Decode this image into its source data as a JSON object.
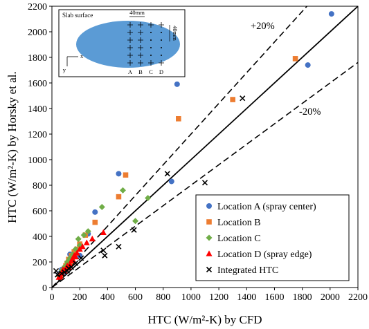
{
  "chart_data": {
    "type": "scatter",
    "title": "",
    "xlabel": "HTC (W/m²-K) by CFD",
    "ylabel": "HTC (W/m²-K) by Horsky et al.",
    "xlim": [
      0,
      2200
    ],
    "ylim": [
      0,
      2200
    ],
    "xticks": [
      0,
      200,
      400,
      600,
      800,
      1000,
      1200,
      1400,
      1600,
      1800,
      2000,
      2200
    ],
    "yticks": [
      0,
      200,
      400,
      600,
      800,
      1000,
      1200,
      1400,
      1600,
      1800,
      2000,
      2200
    ],
    "grid": false,
    "legend_position": "bottom-right",
    "reference_lines": [
      {
        "kind": "parity",
        "slope": 1.0,
        "style": "solid"
      },
      {
        "kind": "upper",
        "slope": 1.2,
        "style": "dashed",
        "label": "+20%"
      },
      {
        "kind": "lower",
        "slope": 0.8,
        "style": "dashed",
        "label": "-20%"
      }
    ],
    "series": [
      {
        "name": "Location A (spray center)",
        "marker": "circle",
        "color": "#4472c4",
        "points": [
          [
            2010,
            2140
          ],
          [
            1840,
            1740
          ],
          [
            900,
            1590
          ],
          [
            860,
            830
          ],
          [
            480,
            890
          ],
          [
            310,
            590
          ],
          [
            260,
            420
          ],
          [
            170,
            290
          ],
          [
            130,
            260
          ],
          [
            100,
            170
          ],
          [
            70,
            140
          ],
          [
            55,
            110
          ],
          [
            200,
            250
          ],
          [
            90,
            120
          ]
        ]
      },
      {
        "name": "Location B",
        "marker": "square",
        "color": "#ed7d31",
        "points": [
          [
            1750,
            1790
          ],
          [
            1300,
            1470
          ],
          [
            910,
            1320
          ],
          [
            530,
            880
          ],
          [
            480,
            710
          ],
          [
            310,
            510
          ],
          [
            240,
            410
          ],
          [
            200,
            340
          ],
          [
            180,
            300
          ],
          [
            160,
            280
          ],
          [
            140,
            250
          ],
          [
            120,
            220
          ],
          [
            110,
            190
          ],
          [
            100,
            170
          ],
          [
            90,
            150
          ],
          [
            80,
            130
          ],
          [
            70,
            110
          ],
          [
            60,
            100
          ],
          [
            150,
            240
          ],
          [
            130,
            200
          ]
        ]
      },
      {
        "name": "Location C",
        "marker": "diamond",
        "color": "#70ad47",
        "points": [
          [
            510,
            760
          ],
          [
            690,
            700
          ],
          [
            600,
            520
          ],
          [
            360,
            630
          ],
          [
            260,
            440
          ],
          [
            230,
            410
          ],
          [
            200,
            330
          ],
          [
            190,
            380
          ],
          [
            170,
            300
          ],
          [
            150,
            260
          ],
          [
            130,
            230
          ],
          [
            110,
            200
          ],
          [
            100,
            170
          ],
          [
            90,
            160
          ],
          [
            70,
            130
          ],
          [
            60,
            100
          ],
          [
            50,
            90
          ],
          [
            120,
            210
          ]
        ]
      },
      {
        "name": "Location D (spray edge)",
        "marker": "triangle",
        "color": "#ff0000",
        "points": [
          [
            370,
            430
          ],
          [
            290,
            380
          ],
          [
            250,
            350
          ],
          [
            220,
            320
          ],
          [
            200,
            300
          ],
          [
            180,
            270
          ],
          [
            170,
            240
          ],
          [
            160,
            250
          ],
          [
            150,
            220
          ],
          [
            140,
            210
          ],
          [
            130,
            180
          ],
          [
            120,
            160
          ],
          [
            110,
            170
          ],
          [
            100,
            150
          ],
          [
            90,
            130
          ],
          [
            80,
            140
          ],
          [
            70,
            110
          ],
          [
            60,
            90
          ],
          [
            50,
            80
          ]
        ]
      },
      {
        "name": "Integrated HTC",
        "marker": "x",
        "color": "#000000",
        "points": [
          [
            1370,
            1480
          ],
          [
            1100,
            820
          ],
          [
            830,
            890
          ],
          [
            590,
            450
          ],
          [
            480,
            320
          ],
          [
            380,
            250
          ],
          [
            370,
            290
          ],
          [
            210,
            230
          ],
          [
            170,
            190
          ],
          [
            140,
            160
          ],
          [
            120,
            150
          ],
          [
            110,
            130
          ],
          [
            90,
            120
          ],
          [
            70,
            110
          ],
          [
            40,
            100
          ],
          [
            30,
            130
          ]
        ]
      }
    ],
    "annotations": [
      "+20%",
      "-20%"
    ]
  },
  "inset": {
    "title": "Slab surface",
    "width_label": "40mm",
    "height_label": "40mm",
    "axis_x": "x",
    "axis_y": "y",
    "columns": [
      "A",
      "B",
      "C",
      "D"
    ]
  }
}
